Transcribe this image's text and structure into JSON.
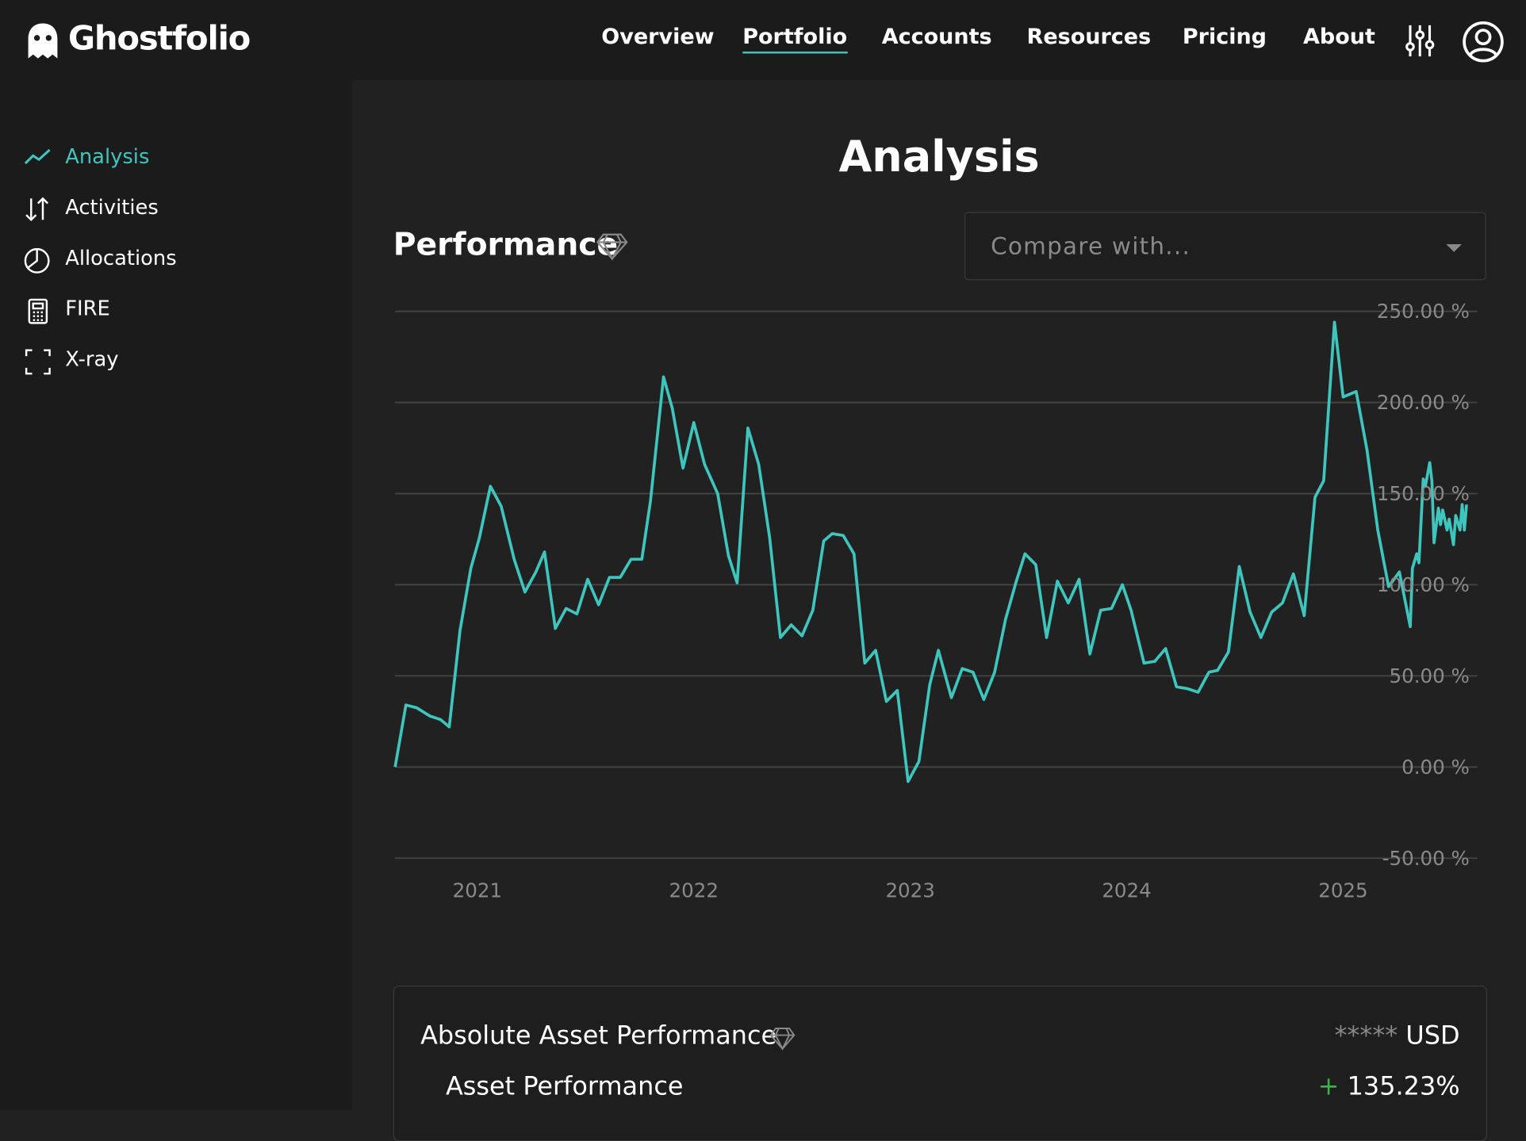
{
  "header": {
    "brand": "Ghostfolio",
    "nav": [
      "Overview",
      "Portfolio",
      "Accounts",
      "Resources",
      "Pricing",
      "About"
    ]
  },
  "sidebar": [
    "Analysis",
    "Activities",
    "Allocations",
    "FIRE",
    "X-ray"
  ],
  "page_title": "Analysis",
  "chart_data": {
    "type": "line",
    "title": "Performance",
    "compare_placeholder": "Compare with...",
    "x": [
      2020.62,
      2020.67,
      2020.72,
      2020.78,
      2020.83,
      2020.87,
      2020.92,
      2020.97,
      2021.01,
      2021.06,
      2021.11,
      2021.17,
      2021.22,
      2021.27,
      2021.31,
      2021.36,
      2021.41,
      2021.46,
      2021.51,
      2021.56,
      2021.61,
      2021.66,
      2021.71,
      2021.76,
      2021.8,
      2021.86,
      2021.9,
      2021.95,
      2022.0,
      2022.05,
      2022.11,
      2022.16,
      2022.2,
      2022.25,
      2022.3,
      2022.35,
      2022.4,
      2022.45,
      2022.5,
      2022.55,
      2022.6,
      2022.64,
      2022.69,
      2022.74,
      2022.79,
      2022.84,
      2022.89,
      2022.94,
      2022.99,
      2023.04,
      2023.09,
      2023.13,
      2023.19,
      2023.24,
      2023.29,
      2023.34,
      2023.39,
      2023.44,
      2023.49,
      2023.53,
      2023.58,
      2023.63,
      2023.68,
      2023.73,
      2023.78,
      2023.83,
      2023.88,
      2023.93,
      2023.98,
      2024.02,
      2024.08,
      2024.13,
      2024.18,
      2024.23,
      2024.28,
      2024.33,
      2024.38,
      2024.42,
      2024.47,
      2024.52,
      2024.57,
      2024.62,
      2024.67,
      2024.72,
      2024.77,
      2024.82,
      2024.87,
      2024.91,
      2024.96,
      2025.0,
      2025.06,
      2025.11,
      2025.16,
      2025.21,
      2025.26,
      2025.31,
      2025.32,
      2025.34,
      2025.35,
      2025.37,
      2025.38,
      2025.4,
      2025.41,
      2025.42,
      2025.44,
      2025.45,
      2025.46,
      2025.48,
      2025.49,
      2025.51,
      2025.52,
      2025.54,
      2025.55,
      2025.56,
      2025.57
    ],
    "series": [
      {
        "color": "#3ec6be",
        "values": [
          0,
          34,
          32.5,
          28,
          26,
          22,
          75,
          109,
          126,
          154,
          143,
          114,
          96,
          107,
          118,
          76,
          87,
          84,
          103,
          89,
          104,
          104,
          114,
          114,
          146,
          214,
          197,
          164,
          189,
          166,
          150,
          116,
          101,
          186,
          166,
          126,
          71,
          78,
          72,
          86,
          124,
          128,
          127,
          117,
          57,
          64,
          36,
          42,
          -8,
          3,
          45,
          64,
          38,
          54,
          52,
          37,
          52,
          81,
          102,
          117,
          111,
          71,
          102,
          90,
          103,
          62,
          86,
          87,
          100,
          86,
          57,
          58,
          65,
          44,
          43,
          41,
          52,
          53,
          63,
          110,
          85,
          71,
          85,
          90,
          106,
          83,
          148,
          157,
          244,
          203,
          206,
          174,
          130,
          99,
          107,
          77,
          109,
          117,
          112,
          158,
          154,
          167,
          157,
          123,
          142,
          133,
          141,
          130,
          136,
          122,
          138,
          130,
          144,
          130,
          144
        ]
      }
    ],
    "xlim": [
      2020.62,
      2025.62
    ],
    "xticks": [
      2021,
      2022,
      2023,
      2024,
      2025
    ],
    "ylim": [
      -50,
      250
    ],
    "yticks": [
      {
        "value": -50,
        "label": "-50.00 %"
      },
      {
        "value": 0,
        "label": "0.00 %"
      },
      {
        "value": 50,
        "label": "50.00 %"
      },
      {
        "value": 100,
        "label": "100.00 %"
      },
      {
        "value": 150,
        "label": "150.00 %"
      },
      {
        "value": 200,
        "label": "200.00 %"
      },
      {
        "value": 250,
        "label": "250.00 %"
      }
    ],
    "grid": true
  },
  "card": {
    "title": "Absolute Asset Performance",
    "masked": "*****",
    "currency": "USD",
    "row_label": "Asset Performance",
    "sign": "+",
    "row_value": "135.23%"
  }
}
